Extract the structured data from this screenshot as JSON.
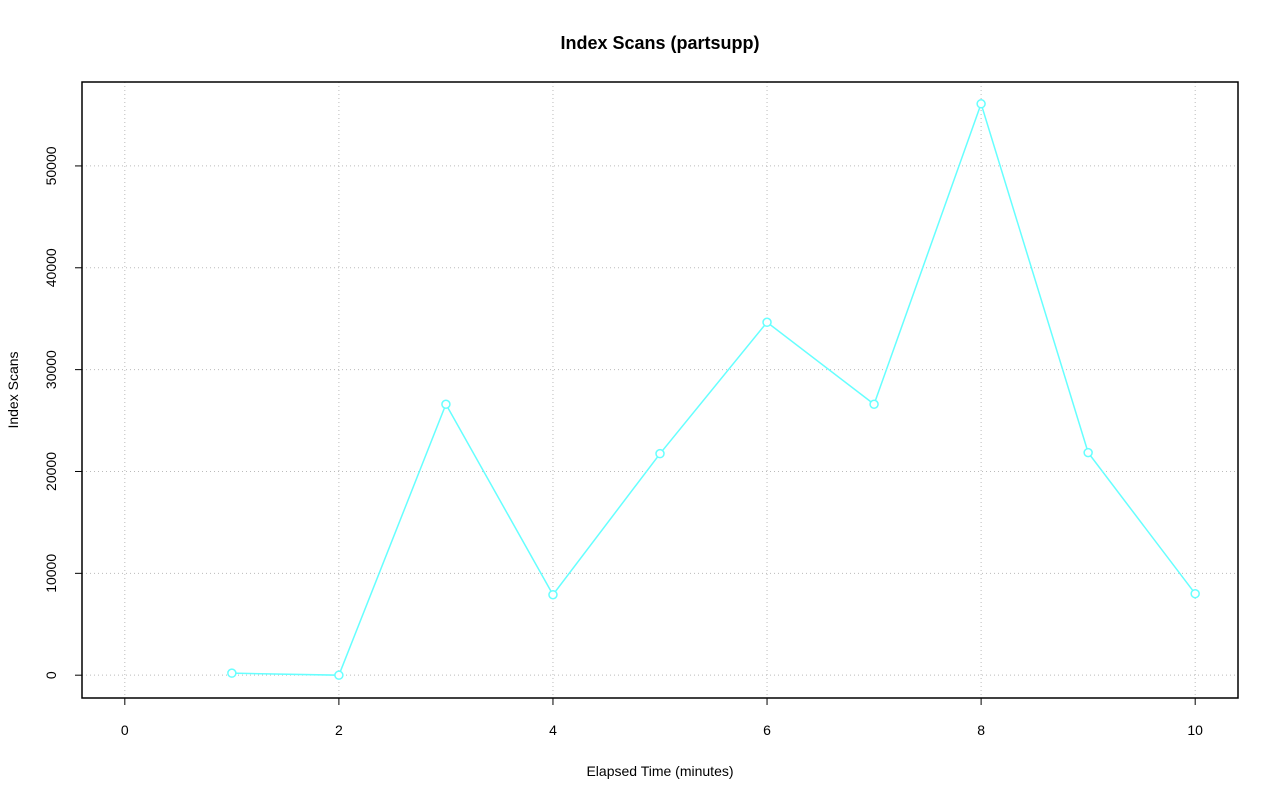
{
  "chart_data": {
    "type": "line",
    "title": "Index Scans (partsupp)",
    "x_label": "Elapsed Time (minutes)",
    "y_label": "Index Scans",
    "x": [
      1,
      2,
      3,
      4,
      5,
      6,
      7,
      8,
      9,
      10
    ],
    "series": [
      {
        "name": "Index Scans",
        "color": "#66ffff",
        "values": [
          200,
          0,
          26600,
          7900,
          21750,
          34650,
          26600,
          56100,
          21850,
          8000
        ]
      }
    ],
    "xlim": [
      -0.4,
      10.4
    ],
    "xticks": [
      0,
      2,
      4,
      6,
      8,
      10
    ],
    "ylim": [
      -2240,
      58240
    ],
    "yticks": [
      0,
      10000,
      20000,
      30000,
      40000,
      50000
    ],
    "grid": true
  }
}
